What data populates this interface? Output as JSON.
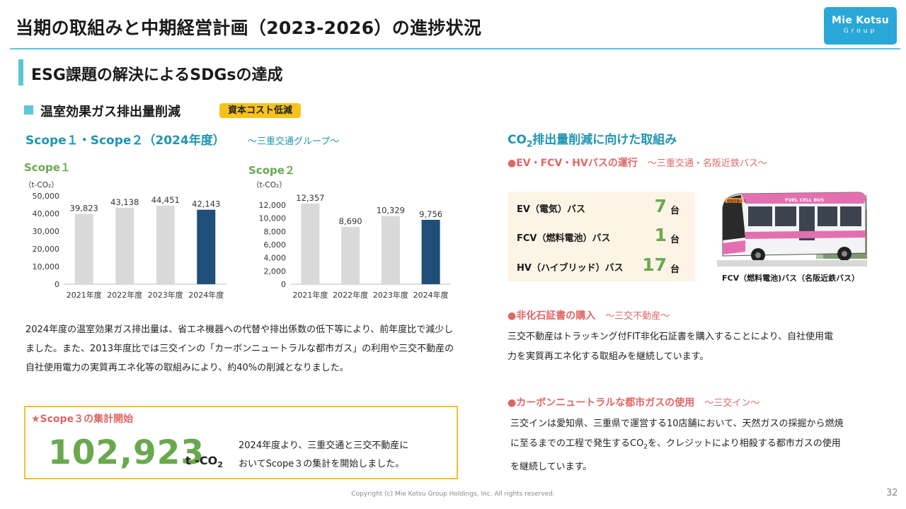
{
  "header": {
    "title": "当期の取組みと中期経営計画（2023-2026）の進捗状況",
    "logo_line1": "Mie Kotsu",
    "logo_line2": "Group"
  },
  "section": {
    "title": "ESG課題の解決によるSDGsの達成",
    "subtitle": "温室効果ガス排出量削減",
    "badge": "資本コスト低減"
  },
  "scope12": {
    "heading": "Scope１・Scope２（2024年度）",
    "subheading": "～三重交通グループ～"
  },
  "chart_data": [
    {
      "type": "bar",
      "title": "Scope１",
      "ylabel": "（t-CO₂）",
      "categories": [
        "2021年度",
        "2022年度",
        "2023年度",
        "2024年度"
      ],
      "values": [
        39823,
        43138,
        44451,
        42143
      ],
      "value_labels": [
        "39,823",
        "43,138",
        "44,451",
        "42,143"
      ],
      "ylim": [
        0,
        50000
      ],
      "yticks": [
        "0",
        "10,000",
        "20,000",
        "30,000",
        "40,000",
        "50,000"
      ],
      "colors": [
        "#d9d9d9",
        "#d9d9d9",
        "#d9d9d9",
        "#1f4e79"
      ],
      "grid": false
    },
    {
      "type": "bar",
      "title": "Scope２",
      "ylabel": "（t-CO₂）",
      "categories": [
        "2021年度",
        "2022年度",
        "2023年度",
        "2024年度"
      ],
      "values": [
        12357,
        8690,
        10329,
        9756
      ],
      "value_labels": [
        "12,357",
        "8,690",
        "10,329",
        "9,756"
      ],
      "ylim": [
        0,
        12000
      ],
      "yticks": [
        "0",
        "2,000",
        "4,000",
        "6,000",
        "8,000",
        "10,000",
        "12,000"
      ],
      "colors": [
        "#d9d9d9",
        "#d9d9d9",
        "#d9d9d9",
        "#1f4e79"
      ],
      "grid": false
    }
  ],
  "description": {
    "paragraph": "2024年度の温室効果ガス排出量は、省エネ機器への代替や排出係数の低下等により、前年度比で減少しました。また、2013年度比では三交インの「カーボンニュートラルな都市ガス」の利用や三交不動産の自社使用電力の実質再エネ化等の取組みにより、約40%の削減となりました。"
  },
  "scope3": {
    "title": "★Scope３の集計開始",
    "value": "102,923",
    "unit_prefix": "t -CO",
    "unit_sub": "2",
    "text_line1": "2024年度より、三重交通と三交不動産に",
    "text_line2": "おいてScope３の集計を開始しました。"
  },
  "co2": {
    "heading_pre": "CO",
    "heading_sub": "2",
    "heading_post": "排出量削減に向けた取組み",
    "ev_bullet": "●EV・FCV・HVバスの運行",
    "ev_bullet_sub": "～三重交通・名阪近鉄バス～",
    "buses": [
      {
        "label": "EV（電気）バス",
        "count": "7",
        "unit": "台"
      },
      {
        "label": "FCV（燃料電池）バス",
        "count": "1",
        "unit": "台"
      },
      {
        "label": "HV（ハイブリッド）バス",
        "count": "17",
        "unit": "台"
      }
    ],
    "bus_caption": "FCV（燃料電池)バス（名阪近鉄バス）",
    "bus_banner": "FUEL CELL BUS",
    "bus_sign": "名阪近鉄バス",
    "cert_bullet": "●非化石証書の購入",
    "cert_bullet_sub": "～三交不動産～",
    "cert_line1": "三交不動産はトラッキング付FIT非化石証書を購入することにより、自社使用電",
    "cert_line2": "力を実質再エネ化する取組みを継続しています。",
    "gas_bullet": "●カーボンニュートラルな都市ガスの使用",
    "gas_bullet_sub": "～三交イン～",
    "gas_line1": "三交インは愛知県、三重県で運営する10店舗において、天然ガスの採掘から燃焼",
    "gas_line2_pre": "に至るまでの工程で発生するCO",
    "gas_line2_sub": "2",
    "gas_line2_post": "を、クレジットにより相殺する都市ガスの使用",
    "gas_line3": "を継続しています。"
  },
  "footer": {
    "copyright": "Copyright (c) Mie Kotsu Group Holdings, Inc. All rights reserved.",
    "page": "32"
  }
}
